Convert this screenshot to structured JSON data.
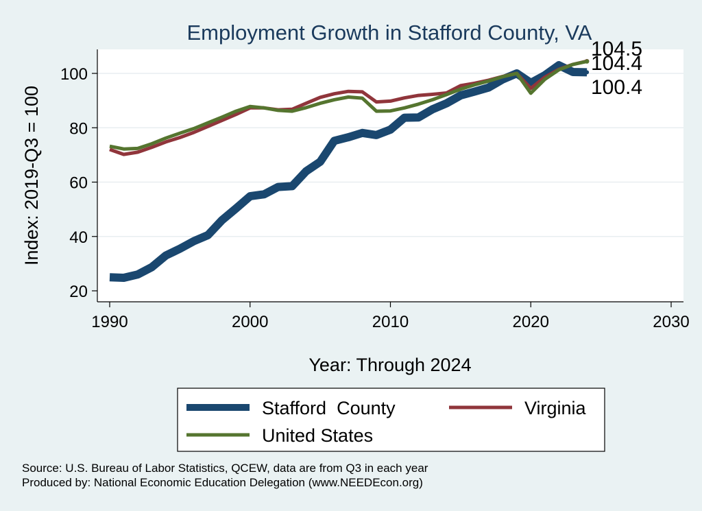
{
  "chart_data": {
    "type": "line",
    "title": "Employment Growth in Stafford County, VA",
    "xlabel": "Year: Through 2024",
    "ylabel": "Index: 2019-Q3 = 100",
    "xlim": [
      1990,
      2030
    ],
    "ylim": [
      20,
      108
    ],
    "xticks": [
      1990,
      2000,
      2010,
      2020,
      2030
    ],
    "yticks": [
      20,
      40,
      60,
      80,
      100
    ],
    "grid": true,
    "legend_position": "bottom",
    "x": [
      1990,
      1991,
      1992,
      1993,
      1994,
      1995,
      1996,
      1997,
      1998,
      1999,
      2000,
      2001,
      2002,
      2003,
      2004,
      2005,
      2006,
      2007,
      2008,
      2009,
      2010,
      2011,
      2012,
      2013,
      2014,
      2015,
      2016,
      2017,
      2018,
      2019,
      2020,
      2021,
      2022,
      2023,
      2024
    ],
    "series": [
      {
        "name": "Stafford  County",
        "color": "#1a476f",
        "values": [
          25,
          24.8,
          26,
          28.7,
          33,
          35.5,
          38.3,
          40.5,
          46,
          50.3,
          54.8,
          55.5,
          58.2,
          58.5,
          64,
          67.5,
          75.2,
          76.5,
          78.1,
          77.3,
          79.3,
          83.7,
          83.8,
          86.8,
          89,
          91.9,
          93.3,
          94.8,
          97.8,
          100,
          96.5,
          99.3,
          103,
          100.5,
          100.4
        ]
      },
      {
        "name": "Virginia",
        "color": "#90353b",
        "values": [
          72,
          70.2,
          71,
          72.8,
          74.8,
          76.4,
          78.3,
          80.5,
          82.7,
          84.9,
          87.3,
          87.3,
          86.6,
          86.8,
          89,
          91.2,
          92.5,
          93.4,
          93.2,
          89.5,
          89.8,
          91,
          91.9,
          92.3,
          92.8,
          95.5,
          96.4,
          97.5,
          98.9,
          100,
          94.5,
          98.6,
          101.5,
          103.3,
          104.5
        ]
      },
      {
        "name": "United States",
        "color": "#55752f",
        "values": [
          73.2,
          72.2,
          72.4,
          74.1,
          76.2,
          78,
          79.7,
          81.8,
          83.9,
          86.1,
          87.8,
          87.3,
          86.4,
          86.1,
          87.4,
          89,
          90.3,
          91.3,
          90.9,
          86.1,
          86.2,
          87.3,
          88.7,
          90.3,
          92.2,
          94.2,
          95.8,
          97.2,
          98.8,
          100,
          92.7,
          97.8,
          101.3,
          103.3,
          104.4
        ]
      }
    ],
    "end_labels": [
      "104.5",
      "104.4",
      "100.4"
    ],
    "notes": [
      "Source: U.S. Bureau of Labor Statistics, QCEW, data are from Q3 in each year",
      "Produced by: National Economic Education Delegation (www.NEEDEcon.org)"
    ]
  }
}
